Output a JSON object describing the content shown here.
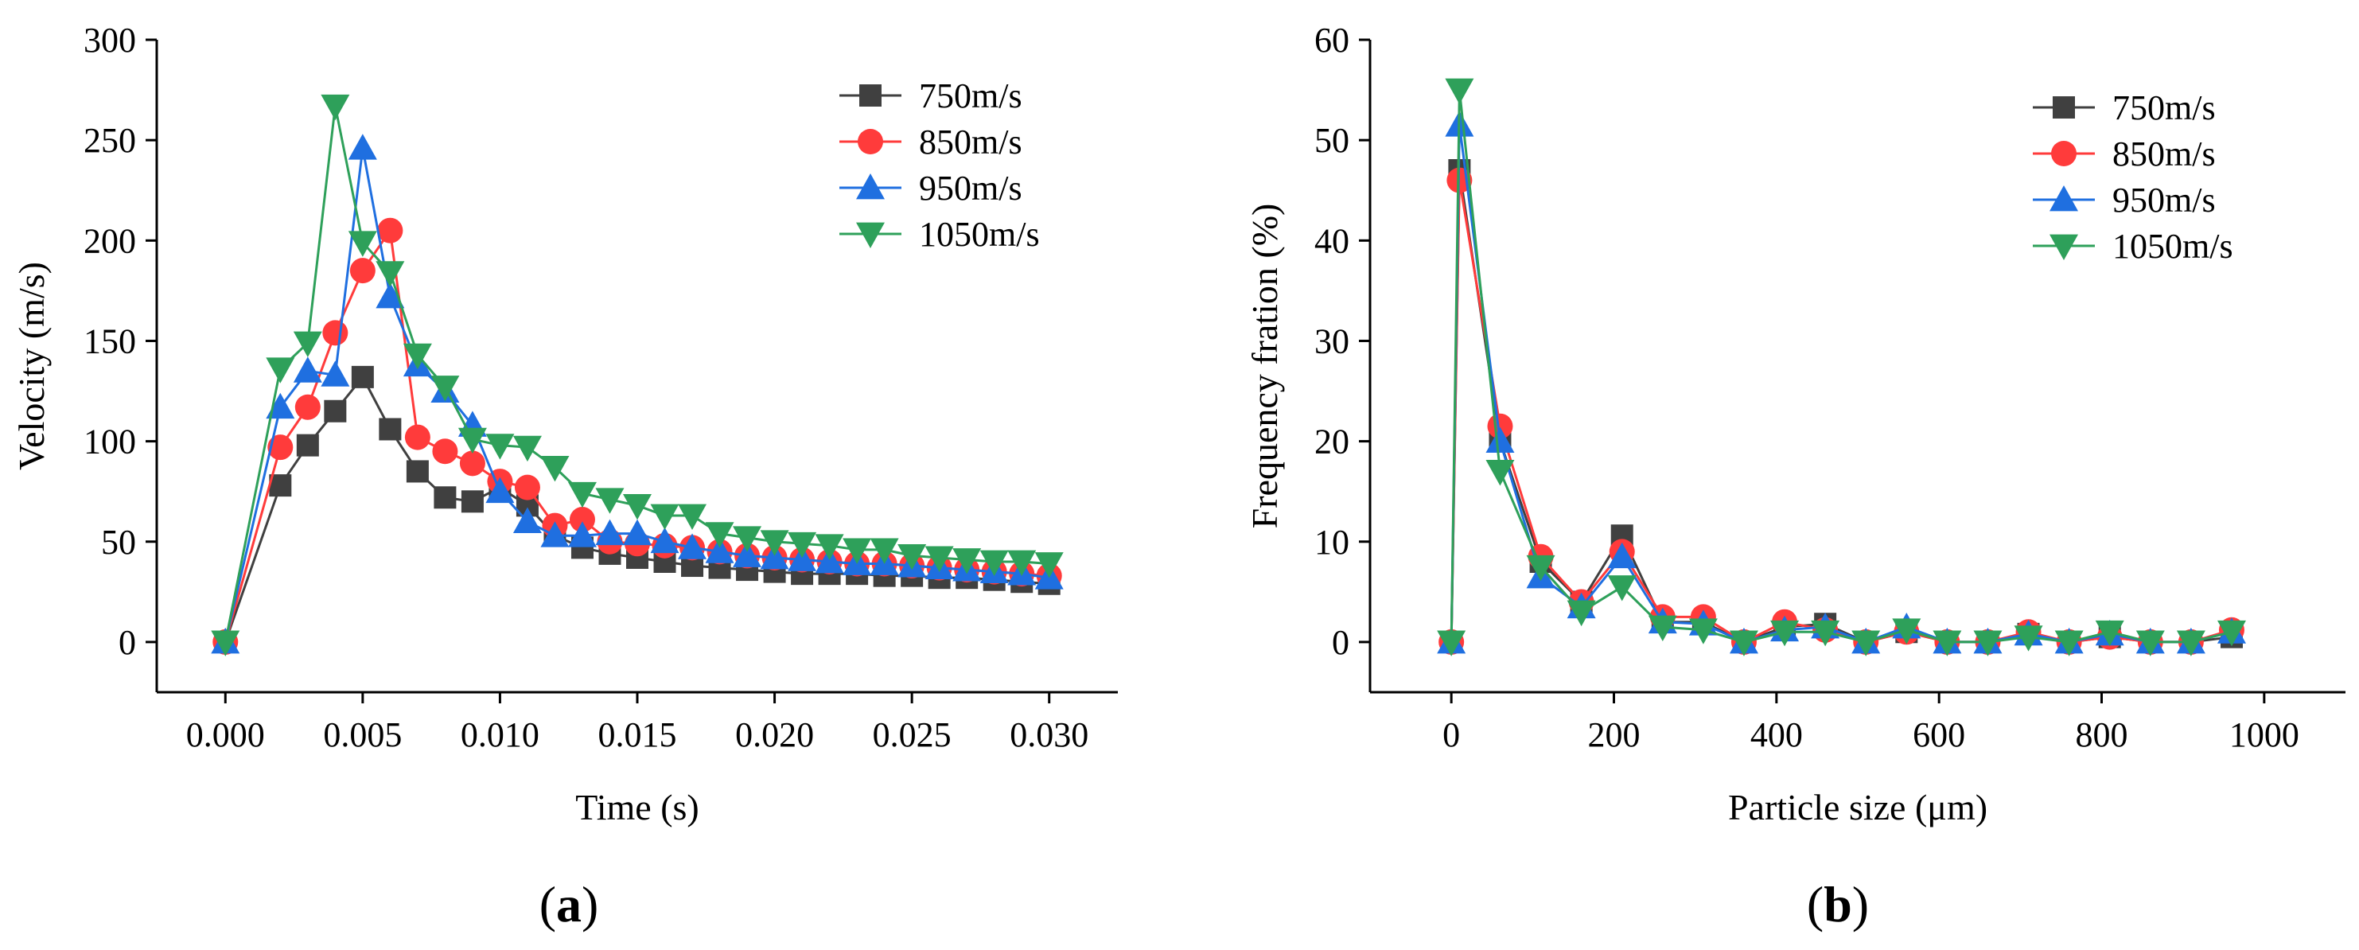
{
  "panels": [
    {
      "label_open": "(",
      "label_letter": "a",
      "label_close": ")",
      "chart_data": {
        "type": "line",
        "title": "",
        "xlabel": "Time (s)",
        "ylabel": "Velocity (m/s)",
        "xlim": [
          -0.0025,
          0.0325
        ],
        "ylim": [
          -25,
          300
        ],
        "xticks": [
          0,
          0.005,
          0.01,
          0.015,
          0.02,
          0.025,
          0.03
        ],
        "xtick_labels": [
          "0.000",
          "0.005",
          "0.010",
          "0.015",
          "0.020",
          "0.025",
          "0.030"
        ],
        "yticks": [
          0,
          50,
          100,
          150,
          200,
          250,
          300
        ],
        "ytick_labels": [
          "0",
          "50",
          "100",
          "150",
          "200",
          "250",
          "300"
        ],
        "legend_position": "top-right",
        "x": [
          0,
          0.002,
          0.003,
          0.004,
          0.005,
          0.006,
          0.007,
          0.008,
          0.009,
          0.01,
          0.011,
          0.012,
          0.013,
          0.014,
          0.015,
          0.016,
          0.017,
          0.018,
          0.019,
          0.02,
          0.021,
          0.022,
          0.023,
          0.024,
          0.025,
          0.026,
          0.027,
          0.028,
          0.029,
          0.03
        ],
        "series": [
          {
            "name": "750m/s",
            "color": "#404040",
            "marker": "square",
            "values": [
              0,
              78,
              98,
              115,
              132,
              106,
              85,
              72,
              70,
              77,
              68,
              53,
              47,
              44,
              42,
              40,
              38,
              37,
              36,
              35,
              34,
              34,
              34,
              33,
              33,
              32,
              32,
              31,
              30,
              29
            ]
          },
          {
            "name": "850m/s",
            "color": "#ff3b3b",
            "marker": "circle",
            "values": [
              0,
              97,
              117,
              154,
              185,
              205,
              102,
              95,
              89,
              80,
              77,
              58,
              61,
              50,
              49,
              48,
              47,
              45,
              43,
              42,
              41,
              40,
              39,
              39,
              38,
              37,
              36,
              35,
              34,
              33
            ]
          },
          {
            "name": "950m/s",
            "color": "#1f6fe0",
            "marker": "triangle-up",
            "values": [
              0,
              117,
              135,
              133,
              246,
              172,
              138,
              125,
              108,
              75,
              60,
              53,
              53,
              54,
              54,
              50,
              47,
              45,
              43,
              42,
              41,
              40,
              39,
              39,
              38,
              37,
              36,
              35,
              34,
              32
            ]
          },
          {
            "name": "1050m/s",
            "color": "#2ea05a",
            "marker": "triangle-down",
            "values": [
              0,
              136,
              149,
              267,
              199,
              184,
              143,
              127,
              101,
              98,
              97,
              87,
              74,
              71,
              68,
              63,
              63,
              54,
              52,
              50,
              49,
              48,
              46,
              46,
              43,
              42,
              41,
              40,
              40,
              39
            ]
          }
        ]
      }
    },
    {
      "label_open": "(",
      "label_letter": "b",
      "label_close": ")",
      "chart_data": {
        "type": "line",
        "title": "",
        "xlabel": "Particle size (μm)",
        "ylabel": "Frequency fration (%)",
        "xlim": [
          -100,
          1100
        ],
        "ylim": [
          -5,
          60
        ],
        "xticks": [
          0,
          200,
          400,
          600,
          800,
          1000
        ],
        "xtick_labels": [
          "0",
          "200",
          "400",
          "600",
          "800",
          "1000"
        ],
        "yticks": [
          0,
          10,
          20,
          30,
          40,
          50,
          60
        ],
        "ytick_labels": [
          "0",
          "10",
          "20",
          "30",
          "40",
          "50",
          "60"
        ],
        "legend_position": "top-right",
        "x": [
          0,
          10,
          60,
          110,
          160,
          210,
          260,
          310,
          360,
          410,
          460,
          510,
          560,
          610,
          660,
          710,
          760,
          810,
          860,
          910,
          960
        ],
        "series": [
          {
            "name": "750m/s",
            "color": "#404040",
            "marker": "square",
            "values": [
              0,
              47,
              20,
              8,
              4,
              10.6,
              2,
              2,
              0,
              1.5,
              1.8,
              0,
              1,
              0,
              0,
              0.8,
              0,
              0.5,
              0,
              0,
              0.5
            ]
          },
          {
            "name": "850m/s",
            "color": "#ff3b3b",
            "marker": "circle",
            "values": [
              0,
              46,
              21.5,
              8.5,
              4,
              9,
              2.5,
              2.5,
              0,
              2,
              1.2,
              0,
              1,
              0,
              0,
              1,
              0,
              0.5,
              0,
              0,
              1.2
            ]
          },
          {
            "name": "950m/s",
            "color": "#1f6fe0",
            "marker": "triangle-up",
            "values": [
              0,
              51.5,
              20,
              6.5,
              3.5,
              8.5,
              2,
              1.8,
              0,
              1.2,
              1.5,
              0,
              1.5,
              0,
              0,
              0.8,
              0,
              0.8,
              0,
              0,
              1
            ]
          },
          {
            "name": "1050m/s",
            "color": "#2ea05a",
            "marker": "triangle-down",
            "values": [
              0,
              55,
              17,
              7.5,
              3,
              5.5,
              1.5,
              1.2,
              0,
              1,
              1,
              0,
              1.2,
              0,
              0,
              0.5,
              0,
              1,
              0,
              0,
              1
            ]
          }
        ]
      }
    }
  ]
}
